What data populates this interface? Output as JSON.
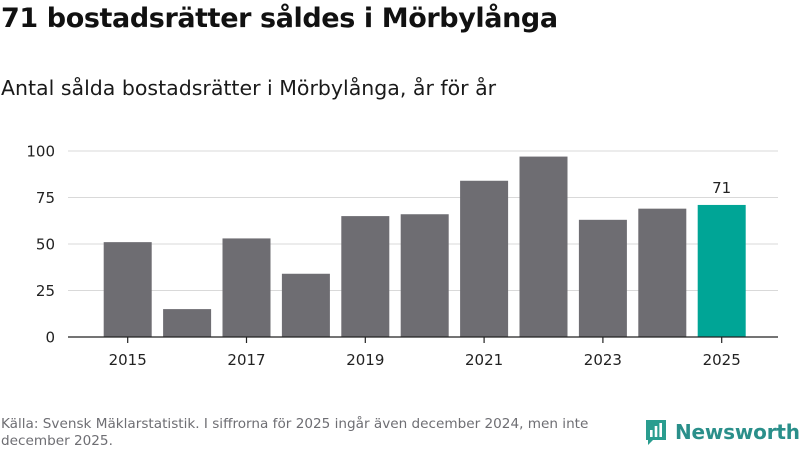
{
  "title": "71 bostadsrätter såldes i Mörbylånga",
  "subtitle": "Antal sålda bostadsrätter i Mörbylånga, år för år",
  "source": "Källa: Svensk Mäklarstatistik. I siffrorna för 2025 ingår även december 2024, men inte december 2025.",
  "brand": {
    "name": "Newsworthy",
    "logo_icon": "bar-chart-logo-icon",
    "color": "#2a9d8f"
  },
  "colors": {
    "bar": "#6e6d72",
    "highlight": "#00a596",
    "grid": "#d9d9d9",
    "axis": "#222222"
  },
  "chart_data": {
    "type": "bar",
    "title": "Antal sålda bostadsrätter i Mörbylånga, år för år",
    "xlabel": "",
    "ylabel": "",
    "categories": [
      "2015",
      "2016",
      "2017",
      "2018",
      "2019",
      "2020",
      "2021",
      "2022",
      "2023",
      "2024",
      "2025"
    ],
    "values": [
      51,
      15,
      53,
      34,
      65,
      66,
      84,
      97,
      63,
      69,
      71
    ],
    "highlight_index": 10,
    "data_labels": {
      "2025": "71"
    },
    "x_tick_labels": [
      "2015",
      "2017",
      "2019",
      "2021",
      "2023",
      "2025"
    ],
    "y_ticks": [
      0,
      25,
      50,
      75,
      100
    ],
    "ylim": [
      0,
      100
    ],
    "grid": true
  }
}
